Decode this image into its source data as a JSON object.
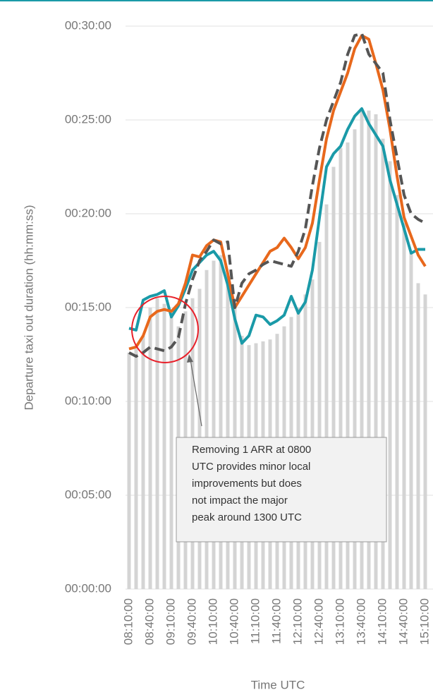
{
  "chart_data": {
    "type": "line",
    "y_label": "Departure taxi out duration (hh:mm:ss)",
    "x_label": "Time UTC",
    "annotation": [
      "Removing 1 ARR at 0800",
      "UTC provides minor local",
      "improvements but does",
      "not impact the major",
      "peak around 1300 UTC"
    ],
    "categories": [
      "08:10:00",
      null,
      null,
      "08:40:00",
      null,
      null,
      "09:10:00",
      null,
      null,
      "09:40:00",
      null,
      null,
      "10:10:00",
      null,
      null,
      "10:40:00",
      null,
      null,
      "11:10:00",
      null,
      null,
      "11:40:00",
      null,
      null,
      "12:10:00",
      null,
      null,
      "12:40:00",
      null,
      null,
      "13:10:00",
      null,
      null,
      "13:40:00",
      null,
      null,
      "14:10:00",
      null,
      null,
      "14:40:00",
      null,
      null,
      "15:10:00"
    ],
    "ylim": [
      0,
      30
    ],
    "yticks": [
      {
        "value": 0,
        "label": "00:00:00"
      },
      {
        "value": 5,
        "label": "00:05:00"
      },
      {
        "value": 10,
        "label": "00:10:00"
      },
      {
        "value": 15,
        "label": "00:15:00"
      },
      {
        "value": 20,
        "label": "00:20:00"
      },
      {
        "value": 25,
        "label": "00:25:00"
      },
      {
        "value": 30,
        "label": "00:30:00"
      }
    ],
    "grid": true,
    "series": [
      {
        "type": "bar",
        "color": "#d4d4d4",
        "values": [
          12.6,
          12.8,
          13.5,
          15.0,
          15.5,
          15.2,
          14.5,
          14.0,
          14.8,
          15.5,
          16.0,
          17.0,
          17.5,
          17.8,
          16.5,
          15.0,
          13.5,
          13.0,
          13.1,
          13.2,
          13.3,
          13.6,
          14.0,
          14.5,
          15.0,
          15.7,
          16.5,
          18.5,
          20.5,
          22.5,
          23.5,
          23.8,
          24.5,
          25.5,
          25.5,
          25.3,
          24.0,
          22.8,
          21.0,
          19.5,
          18.0,
          16.3,
          15.7
        ]
      },
      {
        "type": "line",
        "color": "#1a9aa8",
        "values": [
          13.9,
          13.8,
          15.4,
          15.6,
          15.7,
          15.9,
          14.5,
          15.1,
          16.0,
          17.0,
          17.4,
          17.8,
          18.0,
          17.5,
          16.2,
          14.4,
          13.1,
          13.5,
          14.6,
          14.5,
          14.1,
          14.3,
          14.6,
          15.6,
          14.7,
          15.3,
          17.0,
          19.8,
          22.5,
          23.2,
          23.6,
          24.5,
          25.2,
          25.6,
          24.8,
          24.2,
          23.6,
          21.8,
          20.5,
          19.2,
          17.9,
          18.1,
          18.1
        ]
      },
      {
        "type": "line",
        "color": "#e8681c",
        "values": [
          12.8,
          12.9,
          13.5,
          14.5,
          14.8,
          14.9,
          14.8,
          15.2,
          16.3,
          17.8,
          17.7,
          18.3,
          18.6,
          18.5,
          16.8,
          15.0,
          15.6,
          16.2,
          16.8,
          17.4,
          18.0,
          18.2,
          18.7,
          18.2,
          17.6,
          18.2,
          19.5,
          21.8,
          24.0,
          25.5,
          26.5,
          27.5,
          28.8,
          29.5,
          29.3,
          28.0,
          26.6,
          24.5,
          22.0,
          19.8,
          18.8,
          17.8,
          17.2
        ]
      },
      {
        "type": "line",
        "color": "#555555",
        "dash": true,
        "values": [
          12.6,
          12.4,
          12.6,
          12.9,
          12.8,
          12.7,
          12.9,
          13.4,
          15.2,
          16.5,
          17.5,
          18.0,
          18.6,
          18.4,
          18.5,
          15.0,
          16.3,
          16.8,
          17.0,
          17.3,
          17.5,
          17.4,
          17.3,
          17.2,
          18.0,
          19.2,
          21.5,
          23.5,
          25.0,
          26.0,
          27.0,
          28.5,
          29.5,
          29.6,
          28.5,
          28.0,
          27.5,
          25.0,
          23.0,
          21.0,
          20.0,
          19.7,
          19.5
        ]
      }
    ]
  }
}
